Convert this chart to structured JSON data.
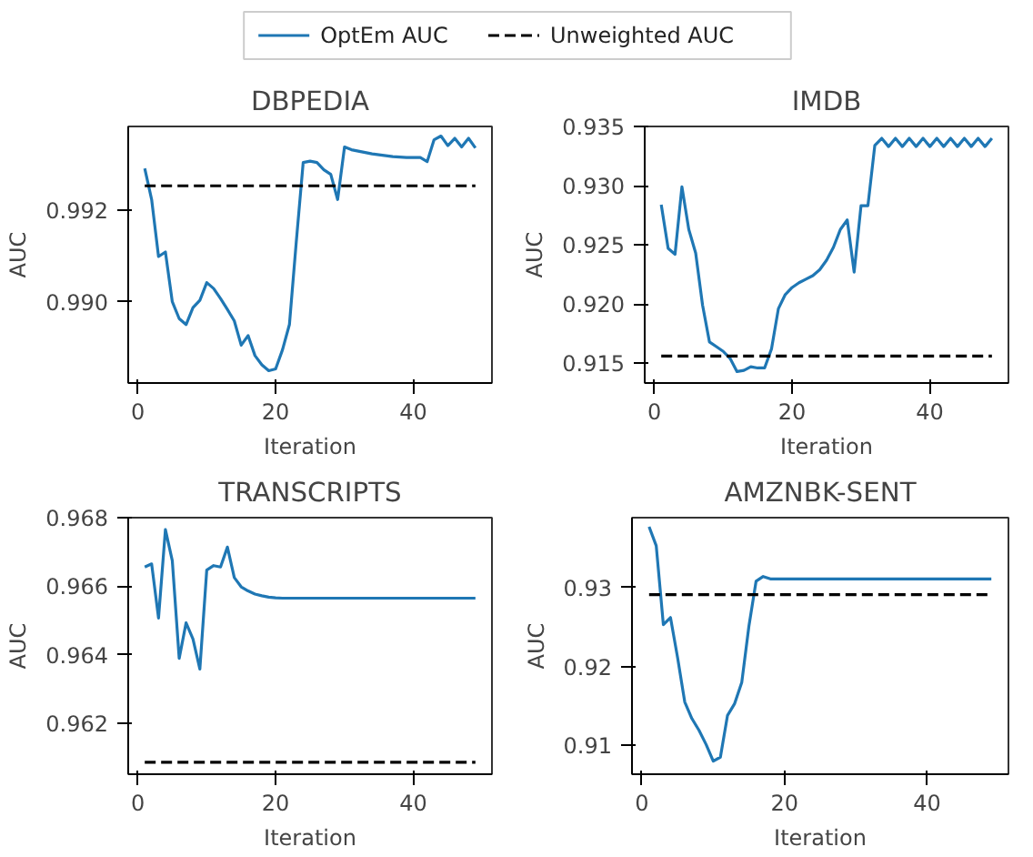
{
  "chart_data": [
    {
      "type": "line",
      "title": "DBPEDIA",
      "xlabel": "Iteration",
      "ylabel": "AUC",
      "legend": "top",
      "grid": false,
      "xlim": [
        -1.4,
        51.4
      ],
      "xticks": [
        0,
        20,
        40
      ],
      "ylim": [
        0.98822,
        0.99384
      ],
      "yticks": [
        {
          "value": 0.99,
          "label": "0.990"
        },
        {
          "value": 0.992,
          "label": "0.992"
        }
      ],
      "x": [
        1,
        2,
        3,
        4,
        5,
        6,
        7,
        8,
        9,
        10,
        11,
        12,
        13,
        14,
        15,
        16,
        17,
        18,
        19,
        20,
        21,
        22,
        23,
        24,
        25,
        26,
        27,
        28,
        29,
        30,
        31,
        32,
        33,
        34,
        35,
        36,
        37,
        38,
        39,
        40,
        41,
        42,
        43,
        44,
        45,
        46,
        47,
        48,
        49
      ],
      "series": [
        {
          "name": "OptEm AUC",
          "color": "#1f77b4",
          "line_style": "solid",
          "values": [
            0.99292,
            0.99224,
            0.99099,
            0.99109,
            0.99,
            0.98963,
            0.9895,
            0.98987,
            0.99003,
            0.99042,
            0.99029,
            0.99007,
            0.98983,
            0.98958,
            0.98905,
            0.98926,
            0.98882,
            0.98862,
            0.98849,
            0.98853,
            0.98895,
            0.9895,
            0.99132,
            0.99305,
            0.99308,
            0.99305,
            0.99289,
            0.99279,
            0.99224,
            0.99339,
            0.99333,
            0.9933,
            0.99327,
            0.99324,
            0.99322,
            0.9932,
            0.99318,
            0.99317,
            0.99316,
            0.99316,
            0.99316,
            0.99307,
            0.99355,
            0.99363,
            0.99342,
            0.99358,
            0.99339,
            0.99358,
            0.99337
          ]
        },
        {
          "name": "Unweighted AUC",
          "color": "#000000",
          "line_style": "dashed",
          "values": [
            0.99254,
            0.99254,
            0.99254,
            0.99254,
            0.99254,
            0.99254,
            0.99254,
            0.99254,
            0.99254,
            0.99254,
            0.99254,
            0.99254,
            0.99254,
            0.99254,
            0.99254,
            0.99254,
            0.99254,
            0.99254,
            0.99254,
            0.99254,
            0.99254,
            0.99254,
            0.99254,
            0.99254,
            0.99254,
            0.99254,
            0.99254,
            0.99254,
            0.99254,
            0.99254,
            0.99254,
            0.99254,
            0.99254,
            0.99254,
            0.99254,
            0.99254,
            0.99254,
            0.99254,
            0.99254,
            0.99254,
            0.99254,
            0.99254,
            0.99254,
            0.99254,
            0.99254,
            0.99254,
            0.99254,
            0.99254,
            0.99254
          ]
        }
      ]
    },
    {
      "type": "line",
      "title": "IMDB",
      "xlabel": "Iteration",
      "ylabel": "AUC",
      "grid": false,
      "xlim": [
        -1.4,
        51.4
      ],
      "xticks": [
        0,
        20,
        40
      ],
      "ylim": [
        0.91333,
        0.935
      ],
      "yticks": [
        {
          "value": 0.915,
          "label": "0.915"
        },
        {
          "value": 0.92,
          "label": "0.920"
        },
        {
          "value": 0.925,
          "label": "0.925"
        },
        {
          "value": 0.93,
          "label": "0.930"
        },
        {
          "value": 0.935,
          "label": "0.935"
        }
      ],
      "x": [
        1,
        2,
        3,
        4,
        5,
        6,
        7,
        8,
        9,
        10,
        11,
        12,
        13,
        14,
        15,
        16,
        17,
        18,
        19,
        20,
        21,
        22,
        23,
        24,
        25,
        26,
        27,
        28,
        29,
        30,
        31,
        32,
        33,
        34,
        35,
        36,
        37,
        38,
        39,
        40,
        41,
        42,
        43,
        44,
        45,
        46,
        47,
        48,
        49
      ],
      "series": [
        {
          "color": "#1f77b4",
          "line_style": "solid",
          "values": [
            0.9284,
            0.9247,
            0.9242,
            0.9299,
            0.9263,
            0.9243,
            0.9199,
            0.9168,
            0.9164,
            0.916,
            0.9154,
            0.9143,
            0.9144,
            0.9147,
            0.9146,
            0.9146,
            0.9162,
            0.9196,
            0.9208,
            0.9214,
            0.9218,
            0.9221,
            0.9224,
            0.9229,
            0.9237,
            0.9248,
            0.9263,
            0.9271,
            0.9227,
            0.9283,
            0.9283,
            0.9334,
            0.934,
            0.9333,
            0.934,
            0.9333,
            0.934,
            0.9333,
            0.934,
            0.9333,
            0.934,
            0.9333,
            0.934,
            0.9333,
            0.934,
            0.9333,
            0.934,
            0.9333,
            0.934
          ]
        },
        {
          "color": "#000000",
          "line_style": "dashed",
          "values": [
            0.9156,
            0.9156,
            0.9156,
            0.9156,
            0.9156,
            0.9156,
            0.9156,
            0.9156,
            0.9156,
            0.9156,
            0.9156,
            0.9156,
            0.9156,
            0.9156,
            0.9156,
            0.9156,
            0.9156,
            0.9156,
            0.9156,
            0.9156,
            0.9156,
            0.9156,
            0.9156,
            0.9156,
            0.9156,
            0.9156,
            0.9156,
            0.9156,
            0.9156,
            0.9156,
            0.9156,
            0.9156,
            0.9156,
            0.9156,
            0.9156,
            0.9156,
            0.9156,
            0.9156,
            0.9156,
            0.9156,
            0.9156,
            0.9156,
            0.9156,
            0.9156,
            0.9156,
            0.9156,
            0.9156,
            0.9156,
            0.9156
          ]
        }
      ]
    },
    {
      "type": "line",
      "title": "TRANSCRIPTS",
      "xlabel": "Iteration",
      "ylabel": "AUC",
      "grid": false,
      "xlim": [
        -1.4,
        51.4
      ],
      "xticks": [
        0,
        20,
        40
      ],
      "ylim": [
        0.96051,
        0.968
      ],
      "yticks": [
        {
          "value": 0.962,
          "label": "0.962"
        },
        {
          "value": 0.964,
          "label": "0.964"
        },
        {
          "value": 0.966,
          "label": "0.966"
        },
        {
          "value": 0.968,
          "label": "0.968"
        }
      ],
      "x": [
        1,
        2,
        3,
        4,
        5,
        6,
        7,
        8,
        9,
        10,
        11,
        12,
        13,
        14,
        15,
        16,
        17,
        18,
        19,
        20,
        21,
        22,
        23,
        24,
        25,
        26,
        27,
        28,
        29,
        30,
        31,
        32,
        33,
        34,
        35,
        36,
        37,
        38,
        39,
        40,
        41,
        42,
        43,
        44,
        45,
        46,
        47,
        48,
        49
      ],
      "series": [
        {
          "color": "#1f77b4",
          "line_style": "solid",
          "values": [
            0.96656,
            0.96665,
            0.96507,
            0.96765,
            0.96674,
            0.96389,
            0.96493,
            0.96446,
            0.96358,
            0.96647,
            0.9666,
            0.96656,
            0.96714,
            0.96625,
            0.96598,
            0.96586,
            0.96577,
            0.96572,
            0.96568,
            0.96566,
            0.96565,
            0.96565,
            0.96565,
            0.96565,
            0.96565,
            0.96565,
            0.96565,
            0.96565,
            0.96565,
            0.96565,
            0.96565,
            0.96565,
            0.96565,
            0.96565,
            0.96565,
            0.96565,
            0.96565,
            0.96565,
            0.96565,
            0.96565,
            0.96565,
            0.96565,
            0.96565,
            0.96565,
            0.96565,
            0.96565,
            0.96565,
            0.96565,
            0.96565
          ]
        },
        {
          "color": "#000000",
          "line_style": "dashed",
          "values": [
            0.96086,
            0.96086,
            0.96086,
            0.96086,
            0.96086,
            0.96086,
            0.96086,
            0.96086,
            0.96086,
            0.96086,
            0.96086,
            0.96086,
            0.96086,
            0.96086,
            0.96086,
            0.96086,
            0.96086,
            0.96086,
            0.96086,
            0.96086,
            0.96086,
            0.96086,
            0.96086,
            0.96086,
            0.96086,
            0.96086,
            0.96086,
            0.96086,
            0.96086,
            0.96086,
            0.96086,
            0.96086,
            0.96086,
            0.96086,
            0.96086,
            0.96086,
            0.96086,
            0.96086,
            0.96086,
            0.96086,
            0.96086,
            0.96086,
            0.96086,
            0.96086,
            0.96086,
            0.96086,
            0.96086,
            0.96086,
            0.96086
          ]
        }
      ]
    },
    {
      "type": "line",
      "title": "AMZNBK-SENT",
      "xlabel": "Iteration",
      "ylabel": "AUC",
      "grid": false,
      "xlim": [
        -1.4,
        51.4
      ],
      "xticks": [
        0,
        20,
        40
      ],
      "ylim": [
        0.90634,
        0.93886
      ],
      "yticks": [
        0.91,
        0.92,
        0.93
      ],
      "x": [
        1,
        2,
        3,
        4,
        5,
        6,
        7,
        8,
        9,
        10,
        11,
        12,
        13,
        14,
        15,
        16,
        17,
        18,
        19,
        20,
        21,
        22,
        23,
        24,
        25,
        26,
        27,
        28,
        29,
        30,
        31,
        32,
        33,
        34,
        35,
        36,
        37,
        38,
        39,
        40,
        41,
        42,
        43,
        44,
        45,
        46,
        47,
        48,
        49
      ],
      "series": [
        {
          "color": "#1f77b4",
          "line_style": "solid",
          "values": [
            0.9377,
            0.9353,
            0.9253,
            0.9262,
            0.9211,
            0.9155,
            0.9134,
            0.9119,
            0.9101,
            0.908,
            0.9085,
            0.9138,
            0.9153,
            0.918,
            0.9251,
            0.9308,
            0.9314,
            0.9311,
            0.9311,
            0.9311,
            0.9311,
            0.9311,
            0.9311,
            0.9311,
            0.9311,
            0.9311,
            0.9311,
            0.9311,
            0.9311,
            0.9311,
            0.9311,
            0.9311,
            0.9311,
            0.9311,
            0.9311,
            0.9311,
            0.9311,
            0.9311,
            0.9311,
            0.9311,
            0.9311,
            0.9311,
            0.9311,
            0.9311,
            0.9311,
            0.9311,
            0.9311,
            0.9311,
            0.9311
          ]
        },
        {
          "color": "#000000",
          "line_style": "dashed",
          "values": [
            0.9291,
            0.9291,
            0.9291,
            0.9291,
            0.9291,
            0.9291,
            0.9291,
            0.9291,
            0.9291,
            0.9291,
            0.9291,
            0.9291,
            0.9291,
            0.9291,
            0.9291,
            0.9291,
            0.9291,
            0.9291,
            0.9291,
            0.9291,
            0.9291,
            0.9291,
            0.9291,
            0.9291,
            0.9291,
            0.9291,
            0.9291,
            0.9291,
            0.9291,
            0.9291,
            0.9291,
            0.9291,
            0.9291,
            0.9291,
            0.9291,
            0.9291,
            0.9291,
            0.9291,
            0.9291,
            0.9291,
            0.9291,
            0.9291,
            0.9291,
            0.9291,
            0.9291,
            0.9291,
            0.9291,
            0.9291,
            0.9291
          ]
        }
      ]
    }
  ]
}
